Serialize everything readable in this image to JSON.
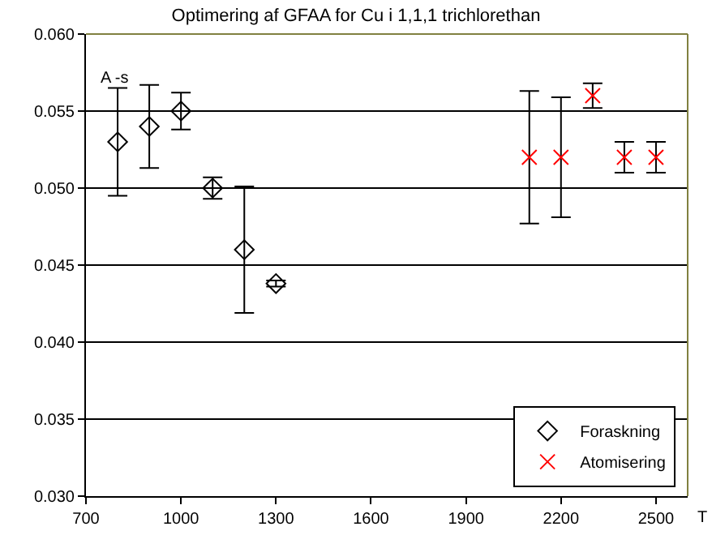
{
  "chart_data": {
    "type": "scatter",
    "title": "Optimering af GFAA for Cu i 1,1,1 trichlorethan",
    "xlabel": "T",
    "ylabel": "A -s",
    "series": [
      {
        "name": "Foraskning",
        "color": "#000000",
        "marker": "diamond",
        "x": [
          800,
          900,
          1000,
          1100,
          1200,
          1300
        ],
        "values": [
          0.053,
          0.054,
          0.055,
          0.05,
          0.046,
          0.0438
        ],
        "errors": [
          0.0035,
          0.0027,
          0.0012,
          0.0007,
          0.0041,
          0.0002
        ]
      },
      {
        "name": "Atomisering",
        "color": "#ff0000",
        "marker": "cross",
        "x": [
          2100,
          2200,
          2300,
          2400,
          2500
        ],
        "values": [
          0.052,
          0.052,
          0.056,
          0.052,
          0.052
        ],
        "errors": [
          0.0043,
          0.0039,
          0.0008,
          0.001,
          0.001
        ]
      }
    ],
    "xlim": [
      700,
      2600
    ],
    "xticks": [
      700,
      1000,
      1300,
      1600,
      1900,
      2200,
      2500
    ],
    "ylim": [
      0.03,
      0.06
    ],
    "yticks": [
      {
        "value": 0.03,
        "label": "0.030"
      },
      {
        "value": 0.035,
        "label": "0.035"
      },
      {
        "value": 0.04,
        "label": "0.040"
      },
      {
        "value": 0.045,
        "label": "0.045"
      },
      {
        "value": 0.05,
        "label": "0.050"
      },
      {
        "value": 0.055,
        "label": "0.055"
      },
      {
        "value": 0.06,
        "label": "0.060"
      }
    ],
    "grid": "y",
    "legend": "bottom right"
  }
}
